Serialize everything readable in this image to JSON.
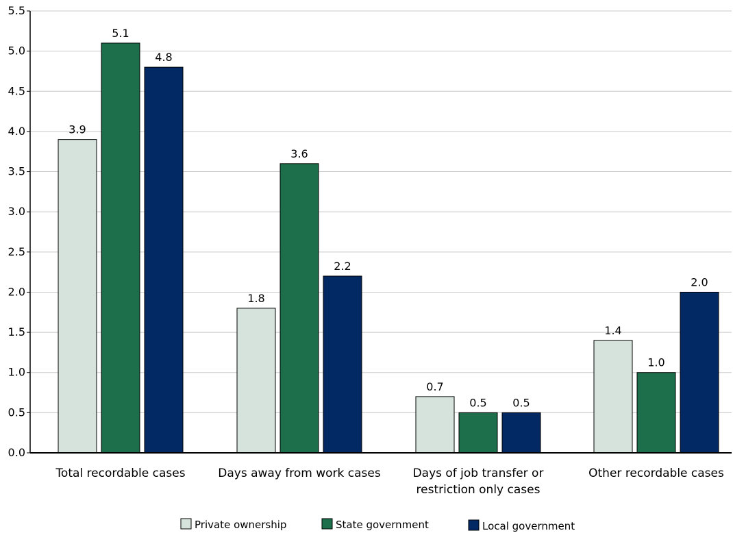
{
  "chart_data": {
    "type": "bar",
    "categories": [
      [
        "Total recordable cases"
      ],
      [
        "Days away from work cases"
      ],
      [
        "Days of job transfer or",
        "restriction only cases"
      ],
      [
        "Other recordable cases"
      ]
    ],
    "series": [
      {
        "name": "Private ownership",
        "color": "#d6e3dc",
        "values": [
          3.9,
          1.8,
          0.7,
          1.4
        ]
      },
      {
        "name": "State government",
        "color": "#1d6e4b",
        "values": [
          5.1,
          3.6,
          0.5,
          1.0
        ]
      },
      {
        "name": "Local government",
        "color": "#032965",
        "values": [
          4.8,
          2.2,
          0.5,
          2.0
        ]
      }
    ],
    "value_labels": [
      [
        "3.9",
        "1.8",
        "0.7",
        "1.4"
      ],
      [
        "5.1",
        "3.6",
        "0.5",
        "1.0"
      ],
      [
        "4.8",
        "2.2",
        "0.5",
        "2.0"
      ]
    ],
    "ylim": [
      0,
      5.5
    ],
    "yticks": [
      "0.0",
      "0.5",
      "1.0",
      "1.5",
      "2.0",
      "2.5",
      "3.0",
      "3.5",
      "4.0",
      "4.5",
      "5.0",
      "5.5"
    ],
    "grid": true,
    "legend_position": "bottom",
    "title": "",
    "xlabel": "",
    "ylabel": ""
  }
}
